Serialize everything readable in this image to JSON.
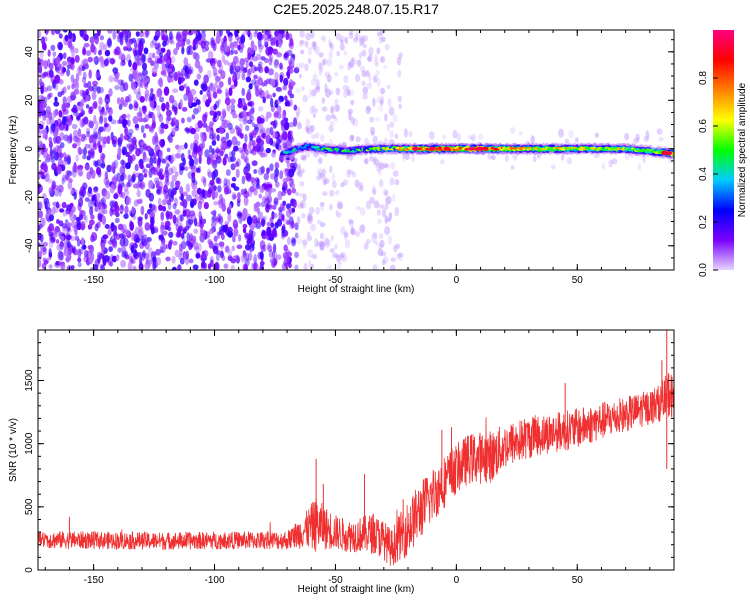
{
  "title": "C2E5.2025.248.07.15.R17",
  "chart_data": [
    {
      "type": "heatmap",
      "title": "",
      "xlabel": "Height of straight line (km)",
      "ylabel": "Frequency (Hz)",
      "xlim": [
        -173,
        90
      ],
      "ylim": [
        -50,
        49
      ],
      "xticks": [
        -150,
        -100,
        -50,
        0,
        50
      ],
      "yticks": [
        -40,
        -20,
        0,
        20,
        40
      ],
      "colorbar": {
        "label": "Normalized spectral amplitude",
        "range": [
          0,
          1
        ],
        "ticks": [
          0.0,
          0.2,
          0.4,
          0.6,
          0.8
        ],
        "colormap": [
          "#e6d4ff",
          "#7b00ff",
          "#0000ff",
          "#00ccff",
          "#00ff00",
          "#ffff00",
          "#ff8000",
          "#ff0000",
          "#ff0080"
        ]
      },
      "noise_regions": [
        {
          "x_range": [
            -173,
            -66
          ],
          "y_range": [
            -50,
            49
          ],
          "amplitude": 0.13
        },
        {
          "x_range": [
            -66,
            -23
          ],
          "y_range": [
            -50,
            49
          ],
          "amplitude": 0.04
        },
        {
          "x_range": [
            -23,
            90
          ],
          "y_range": [
            -8,
            8
          ],
          "amplitude": 0.02
        }
      ],
      "signal": {
        "x": [
          -72,
          -62,
          -55,
          -45,
          -35,
          -25,
          -10,
          0,
          10,
          20,
          30,
          50,
          70,
          80,
          90
        ],
        "y": [
          -2,
          1,
          0,
          -1,
          0,
          0,
          0,
          0,
          0,
          0,
          0,
          0,
          0,
          -1,
          -2
        ],
        "amplitude": [
          0.35,
          0.4,
          0.45,
          0.45,
          0.5,
          0.6,
          0.85,
          0.7,
          0.9,
          0.7,
          0.6,
          0.6,
          0.55,
          0.5,
          0.85
        ]
      }
    },
    {
      "type": "line",
      "title": "",
      "xlabel": "Height of straight line (km)",
      "ylabel": "SNR (10 * v/v)",
      "xlim": [
        -173,
        90
      ],
      "ylim": [
        0,
        1900
      ],
      "xticks": [
        -150,
        -100,
        -50,
        0,
        50
      ],
      "yticks": [
        0,
        500,
        1000,
        1500
      ],
      "line_color": "#f03030",
      "envelope": {
        "x": [
          -173,
          -150,
          -120,
          -90,
          -70,
          -62,
          -58,
          -55,
          -50,
          -45,
          -40,
          -35,
          -30,
          -27,
          -24,
          -20,
          -15,
          -10,
          -5,
          0,
          5,
          10,
          15,
          20,
          30,
          40,
          50,
          60,
          70,
          80,
          85,
          88,
          90
        ],
        "mean": [
          240,
          235,
          230,
          235,
          235,
          320,
          360,
          340,
          300,
          270,
          280,
          290,
          240,
          170,
          250,
          330,
          470,
          590,
          700,
          800,
          880,
          890,
          900,
          980,
          1050,
          1090,
          1120,
          1180,
          1230,
          1290,
          1330,
          1400,
          1350
        ],
        "amplitude": [
          70,
          70,
          70,
          70,
          75,
          150,
          220,
          180,
          140,
          130,
          140,
          160,
          160,
          150,
          180,
          220,
          230,
          220,
          210,
          200,
          200,
          210,
          210,
          180,
          170,
          160,
          160,
          150,
          140,
          140,
          150,
          200,
          180
        ]
      },
      "spikes": [
        {
          "x": -173,
          "y": 520
        },
        {
          "x": -160,
          "y": 420
        },
        {
          "x": -58,
          "y": 880
        },
        {
          "x": -55,
          "y": 680
        },
        {
          "x": -38,
          "y": 760
        },
        {
          "x": -22,
          "y": 560
        },
        {
          "x": -6,
          "y": 1110
        },
        {
          "x": -2,
          "y": 1130
        },
        {
          "x": 45,
          "y": 1480
        },
        {
          "x": 85,
          "y": 1660
        },
        {
          "x": 87,
          "y": 1920
        },
        {
          "x": 87,
          "y": 800
        }
      ]
    }
  ]
}
